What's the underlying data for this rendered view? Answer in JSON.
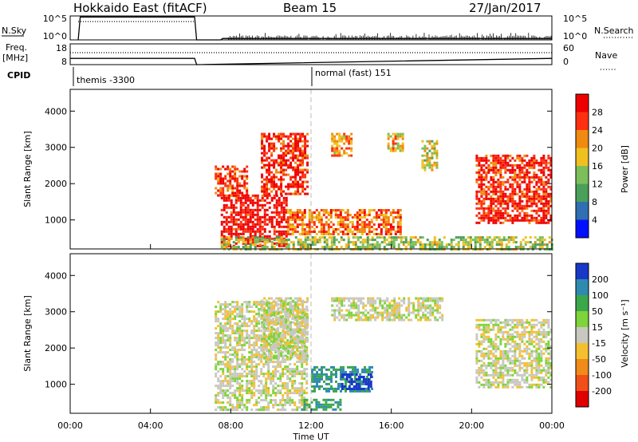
{
  "header": {
    "radar_title": "Hokkaido East (fitACF)",
    "beam": "Beam 15",
    "date": "27/Jan/2017"
  },
  "panel_labels": {
    "nsky": "N.Sky",
    "nsearch": "N.Search",
    "freq": "Freq.",
    "freq_unit": "[MHz]",
    "nave": "Nave",
    "cpid": "CPID"
  },
  "noise_ticks": {
    "left": [
      "10^5",
      "10^0"
    ],
    "right": [
      "10^5",
      "10^0"
    ]
  },
  "freq_ticks": {
    "left": [
      "18",
      "8"
    ],
    "right": [
      "60",
      "0"
    ]
  },
  "cpid_labels": {
    "first": "themis -3300",
    "second": "normal (fast) 151"
  },
  "axes": {
    "xlabel": "Time UT",
    "x_ticks": [
      "00:00",
      "04:00",
      "08:00",
      "12:00",
      "16:00",
      "20:00",
      "00:00"
    ],
    "ylabel": "Slant Range [km]",
    "y_ticks": [
      "1000",
      "2000",
      "3000",
      "4000"
    ]
  },
  "colorbars": {
    "power": {
      "label": "Power [dB]",
      "ticks": [
        "4",
        "8",
        "12",
        "16",
        "20",
        "24",
        "28"
      ],
      "colors": [
        "#0010ff",
        "#2f6fb2",
        "#4aa05a",
        "#7cbf5a",
        "#f0c020",
        "#f08a10",
        "#ff3010",
        "#ee0000"
      ]
    },
    "velocity": {
      "label": "Velocity [m s⁻¹]",
      "ticks": [
        "200",
        "100",
        "50",
        "15",
        "-15",
        "-50",
        "-100",
        "-200"
      ],
      "colors": [
        "#1838c8",
        "#2f8ab0",
        "#3aa84a",
        "#7ed43a",
        "#c8c8c0",
        "#f4c030",
        "#f08a18",
        "#f05018",
        "#e00000"
      ]
    }
  },
  "chart_data": [
    {
      "type": "line",
      "title": "N.Sky / N.Search",
      "x_range_hours": [
        0,
        24
      ],
      "y_scale": "log",
      "ylim": [
        1,
        100000
      ],
      "series": [
        {
          "name": "N.Sky",
          "x": [
            0.4,
            0.5,
            6.2,
            6.3,
            7.5,
            7.6,
            24
          ],
          "y": [
            1,
            60000,
            60000,
            1,
            1,
            2,
            2
          ]
        }
      ]
    },
    {
      "type": "line",
      "title": "Freq. / Nave",
      "x_range_hours": [
        0,
        24
      ],
      "ylim": [
        8,
        18
      ],
      "series": [
        {
          "name": "Freq.",
          "x": [
            0,
            6.2,
            6.3,
            24
          ],
          "y": [
            11,
            11,
            8,
            11
          ]
        }
      ]
    },
    {
      "type": "heatmap",
      "title": "Power [dB]",
      "xlabel": "Time UT",
      "ylabel": "Slant Range [km]",
      "x_range_hours": [
        0,
        24
      ],
      "ylim": [
        200,
        4600
      ],
      "clim": [
        0,
        30
      ],
      "regions": [
        {
          "x": [
            7.2,
            8.8
          ],
          "y": [
            1700,
            2500
          ],
          "value": 24
        },
        {
          "x": [
            7.5,
            10.8
          ],
          "y": [
            300,
            1700
          ],
          "value": 28
        },
        {
          "x": [
            9.5,
            11.8
          ],
          "y": [
            1700,
            3400
          ],
          "value": 26
        },
        {
          "x": [
            10.8,
            16.5
          ],
          "y": [
            600,
            1300
          ],
          "value": 22
        },
        {
          "x": [
            13.0,
            14.0
          ],
          "y": [
            2800,
            3400
          ],
          "value": 20
        },
        {
          "x": [
            15.8,
            16.6
          ],
          "y": [
            2900,
            3400
          ],
          "value": 18
        },
        {
          "x": [
            17.5,
            18.3
          ],
          "y": [
            2400,
            3200
          ],
          "value": 16
        },
        {
          "x": [
            20.2,
            24.0
          ],
          "y": [
            900,
            2800
          ],
          "value": 26
        },
        {
          "x": [
            7.5,
            24.0
          ],
          "y": [
            200,
            550
          ],
          "value": 14
        }
      ]
    },
    {
      "type": "heatmap",
      "title": "Velocity [m s⁻¹]",
      "xlabel": "Time UT",
      "ylabel": "Slant Range [km]",
      "x_range_hours": [
        0,
        24
      ],
      "ylim": [
        200,
        4600
      ],
      "clim": [
        -200,
        200
      ],
      "regions": [
        {
          "x": [
            7.2,
            11.8
          ],
          "y": [
            300,
            3300
          ],
          "value": 0
        },
        {
          "x": [
            9.5,
            11.8
          ],
          "y": [
            1700,
            3400
          ],
          "value": 0
        },
        {
          "x": [
            11.5,
            13.5
          ],
          "y": [
            300,
            600
          ],
          "value": 60
        },
        {
          "x": [
            12.0,
            15.0
          ],
          "y": [
            800,
            1500
          ],
          "value": 80
        },
        {
          "x": [
            13.5,
            15.0
          ],
          "y": [
            900,
            1300
          ],
          "value": 180
        },
        {
          "x": [
            20.2,
            24.0
          ],
          "y": [
            900,
            2800
          ],
          "value": 0
        },
        {
          "x": [
            13.0,
            18.5
          ],
          "y": [
            2800,
            3400
          ],
          "value": 0
        }
      ]
    }
  ]
}
